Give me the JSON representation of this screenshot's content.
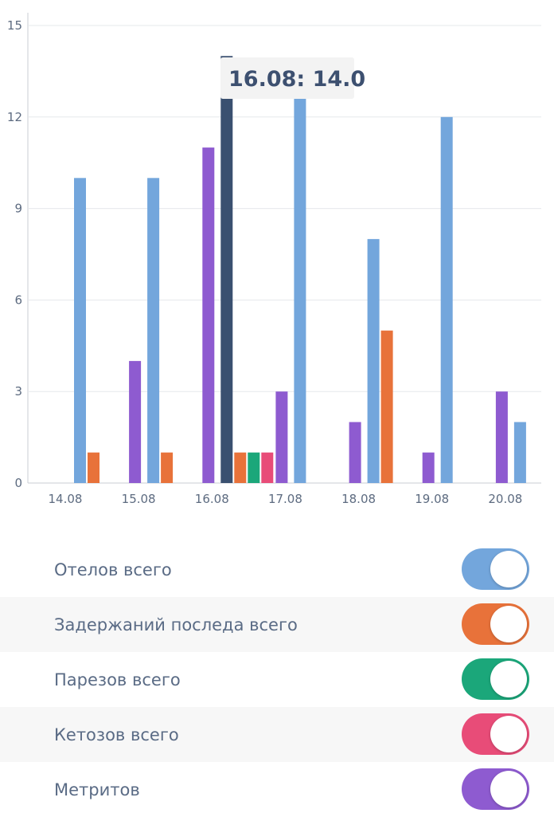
{
  "chart_data": {
    "type": "bar",
    "categories": [
      "14.08",
      "15.08",
      "16.08",
      "17.08",
      "18.08",
      "19.08",
      "20.08"
    ],
    "y_ticks": [
      "0",
      "3",
      "6",
      "9",
      "12",
      "15"
    ],
    "ylim": [
      0,
      15
    ],
    "grid": true,
    "series": [
      {
        "name": "Метритов",
        "color": "#8e5bd0",
        "values": [
          null,
          4,
          11,
          3,
          2,
          1,
          3
        ]
      },
      {
        "name": "Отелов всего",
        "color": "#73a6dc",
        "values": [
          10,
          10,
          14,
          13,
          8,
          12,
          2
        ]
      },
      {
        "name": "Задержаний последа всего",
        "color": "#e8723a",
        "values": [
          1,
          1,
          1,
          null,
          5,
          null,
          null
        ]
      },
      {
        "name": "Парезов всего",
        "color": "#1ba77a",
        "values": [
          null,
          null,
          1,
          null,
          null,
          null,
          null
        ]
      },
      {
        "name": "Кетозов всего",
        "color": "#e84c78",
        "values": [
          null,
          null,
          1,
          null,
          null,
          null,
          null
        ]
      }
    ],
    "highlight": {
      "series": 1,
      "category": 2,
      "color": "#3a5070"
    },
    "tooltip": "16.08: 14.0"
  },
  "legend": [
    {
      "label": "Отелов всего",
      "color": "#73a6dc",
      "on": true
    },
    {
      "label": "Задержаний последа всего",
      "color": "#e8723a",
      "on": true
    },
    {
      "label": "Парезов всего",
      "color": "#1ba77a",
      "on": true
    },
    {
      "label": "Кетозов всего",
      "color": "#e84c78",
      "on": true
    },
    {
      "label": "Метритов",
      "color": "#8e5bd0",
      "on": true
    }
  ]
}
